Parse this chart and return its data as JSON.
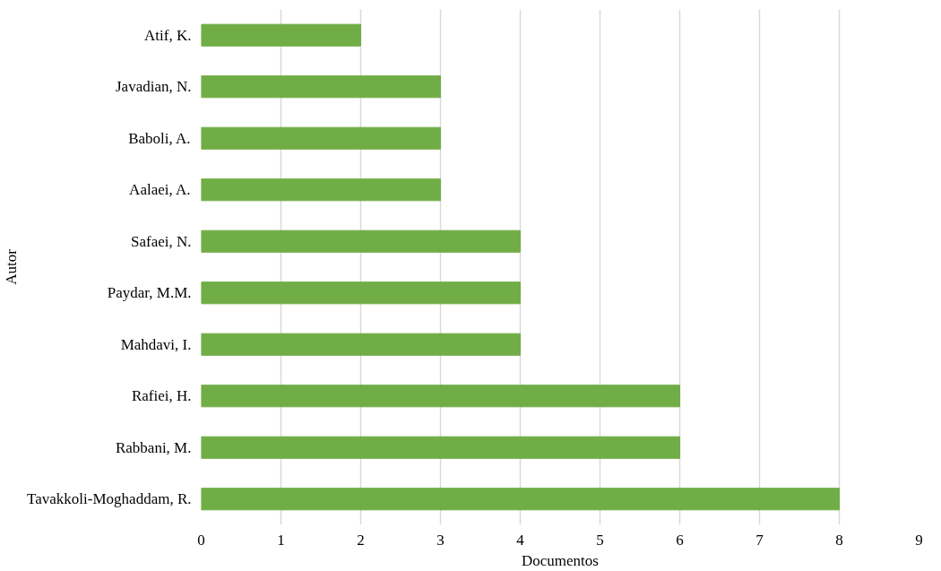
{
  "chart_data": {
    "type": "bar",
    "orientation": "horizontal",
    "xlabel": "Documentos",
    "ylabel": "Autor",
    "categories": [
      "Atif, K.",
      "Javadian, N.",
      "Baboli, A.",
      "Aalaei, A.",
      "Safaei, N.",
      "Paydar, M.M.",
      "Mahdavi, I.",
      "Rafiei, H.",
      "Rabbani, M.",
      "Tavakkoli-Moghaddam, R."
    ],
    "values": [
      2,
      3,
      3,
      3,
      4,
      4,
      4,
      6,
      6,
      8
    ],
    "color": "#70ad47",
    "xlim": [
      0,
      9
    ],
    "xticks": [
      0,
      1,
      2,
      3,
      4,
      5,
      6,
      7,
      8,
      9
    ],
    "grid": "x"
  }
}
